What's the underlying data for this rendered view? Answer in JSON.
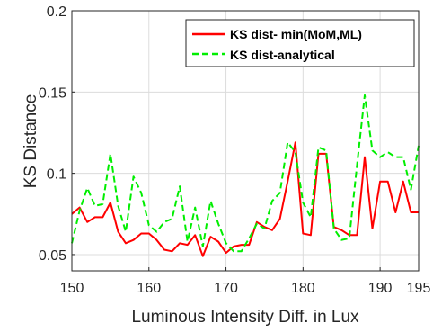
{
  "chart_data": {
    "type": "line",
    "xlabel": "Luminous Intensity Diff. in Lux",
    "ylabel": "KS Distance",
    "xlim": [
      150,
      195
    ],
    "ylim": [
      0.04,
      0.2
    ],
    "x_ticks": [
      150,
      160,
      170,
      180,
      190,
      195
    ],
    "y_ticks": [
      0.05,
      0.1,
      0.15,
      0.2
    ],
    "x_tick_labels": [
      "150",
      "160",
      "170",
      "180",
      "190",
      "195"
    ],
    "y_tick_labels": [
      "0.05",
      "0.1",
      "0.15",
      "0.2"
    ],
    "grid": true,
    "legend_position": "top-right",
    "x": [
      150,
      151,
      152,
      153,
      154,
      155,
      156,
      157,
      158,
      159,
      160,
      161,
      162,
      163,
      164,
      165,
      166,
      167,
      168,
      169,
      170,
      171,
      172,
      173,
      174,
      175,
      176,
      177,
      178,
      179,
      180,
      181,
      182,
      183,
      184,
      185,
      186,
      187,
      188,
      189,
      190,
      191,
      192,
      193,
      194,
      195
    ],
    "series": [
      {
        "name": "KS dist- min(MoM,ML)",
        "color": "#ff0000",
        "style": "solid",
        "values": [
          0.075,
          0.079,
          0.07,
          0.073,
          0.073,
          0.082,
          0.064,
          0.057,
          0.059,
          0.063,
          0.063,
          0.059,
          0.053,
          0.052,
          0.057,
          0.056,
          0.062,
          0.049,
          0.061,
          0.058,
          0.051,
          0.055,
          0.056,
          0.056,
          0.07,
          0.067,
          0.065,
          0.072,
          0.095,
          0.119,
          0.063,
          0.062,
          0.112,
          0.112,
          0.067,
          0.065,
          0.062,
          0.062,
          0.11,
          0.066,
          0.095,
          0.095,
          0.076,
          0.095,
          0.076,
          0.076
        ]
      },
      {
        "name": "KS dist-analytical",
        "color": "#00ee00",
        "style": "dashed",
        "values": [
          0.057,
          0.077,
          0.091,
          0.08,
          0.081,
          0.112,
          0.08,
          0.064,
          0.098,
          0.088,
          0.068,
          0.064,
          0.07,
          0.072,
          0.092,
          0.058,
          0.079,
          0.055,
          0.083,
          0.069,
          0.057,
          0.052,
          0.052,
          0.06,
          0.069,
          0.066,
          0.083,
          0.088,
          0.119,
          0.113,
          0.082,
          0.073,
          0.116,
          0.114,
          0.066,
          0.059,
          0.06,
          0.105,
          0.148,
          0.114,
          0.11,
          0.113,
          0.11,
          0.11,
          0.09,
          0.117
        ]
      }
    ]
  }
}
